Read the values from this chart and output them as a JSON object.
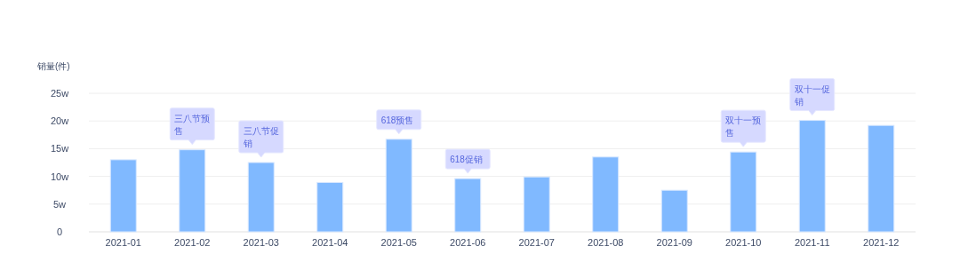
{
  "chart_data": {
    "type": "bar",
    "ylabel": "销量(件)",
    "categories": [
      "2021-01",
      "2021-02",
      "2021-03",
      "2021-04",
      "2021-05",
      "2021-06",
      "2021-07",
      "2021-08",
      "2021-09",
      "2021-10",
      "2021-11",
      "2021-12"
    ],
    "values": [
      13.0,
      14.8,
      12.5,
      8.9,
      16.7,
      9.6,
      9.9,
      13.5,
      7.5,
      14.4,
      20.1,
      19.2
    ],
    "color": "#80b9ff",
    "ylim": [
      0,
      25
    ],
    "yticks": [
      0,
      {
        "value": 5,
        "label": "5w"
      },
      {
        "value": 10,
        "label": "10w"
      },
      {
        "value": 15,
        "label": "15w"
      },
      {
        "value": 20,
        "label": "20w"
      },
      {
        "value": 25,
        "label": "25w"
      }
    ],
    "grid": "y",
    "annotations": [
      {
        "text": "三八节预售",
        "x": "2021-02",
        "y": 14.8
      },
      {
        "text": "三八节促销",
        "x": "2021-03",
        "y": 12.5
      },
      {
        "text": "618预售",
        "x": "2021-05",
        "y": 16.7
      },
      {
        "text": "618促销",
        "x": "2021-06",
        "y": 9.6
      },
      {
        "text": "双十一预售",
        "x": "2021-10",
        "y": 14.4
      },
      {
        "text": "双十一促销",
        "x": "2021-11",
        "y": 20.1
      }
    ]
  }
}
